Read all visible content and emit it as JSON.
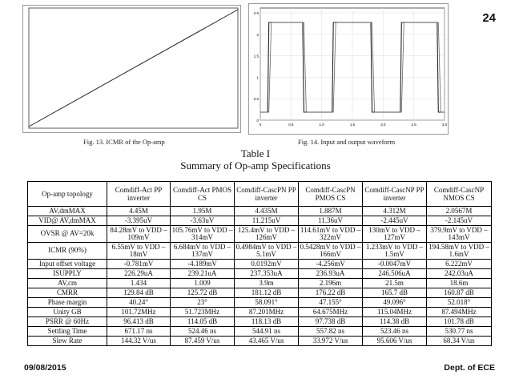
{
  "slide_number": "24",
  "figure13": {
    "caption": "Fig. 13. ICMR of the Op-amp"
  },
  "figure14": {
    "caption": "Fig. 14. Input and output waveform",
    "y_ticks": [
      "2.5",
      "2",
      "1.5",
      "1",
      "0.5",
      "0"
    ],
    "x_ticks": [
      "0",
      "0.5",
      "1.0",
      "1.5",
      "2.0",
      "2.5",
      "3.0"
    ]
  },
  "table": {
    "title_line1": "Table I",
    "title_line2": "Summary of Op-amp Specifications",
    "headers": [
      "Op-amp topology",
      "Comdiff-Act PP inverter",
      "Comdiff-Act PMOS CS",
      "Comdiff-CascPN PP inverter",
      "Comdiff-CascPN PMOS CS",
      "Comdiff-CascNP PP inverter",
      "Comdiff-CascNP NMOS CS"
    ],
    "rows": [
      {
        "label": "AV,dmMAX",
        "cells": [
          "4.45M",
          "1.95M",
          "4.435M",
          "1.887M",
          "4.312M",
          "2.0567M"
        ]
      },
      {
        "label": "VID@ AV,dmMAX",
        "cells": [
          "-3.395uV",
          "-3.63uV",
          "11.215uV",
          "11.36uV",
          "-2.445uV",
          "-2.145uV"
        ]
      },
      {
        "label": "OVSR @ AV=20k",
        "cells": [
          "84.28mV to VDD – 109mV",
          "105.76mV to VDD – 314mV",
          "125.4mV to VDD – 126mV",
          "114.61mV to VDD – 322mV",
          "130mV to VDD – 127mV",
          "379.9mV to VDD – 143mV"
        ]
      },
      {
        "label": "ICMR (90%)",
        "cells": [
          "6.55mV to VDD – 18mV",
          "6.684mV to VDD – 137mV",
          "0.4984mV to VDD – 5.1mV",
          "0.5428mV to VDD – 166mV",
          "1.233mV to VDD – 1.5mV",
          "194.58mV to VDD – 1.6mV"
        ]
      },
      {
        "label": "Input offset voltage",
        "cells": [
          "-0.781mV",
          "-4.189mV",
          "0.0192mV",
          "-4.256mV",
          "-0.0047mV",
          "6.222mV"
        ]
      },
      {
        "label": "ISUPPLY",
        "cells": [
          "226.29uA",
          "239.21uA",
          "237.353uA",
          "236.93uA",
          "246.506uA",
          "242.03uA"
        ]
      },
      {
        "label": "AV,cm",
        "cells": [
          "1.434",
          "1.009",
          "3.9m",
          "2.196m",
          "21.5m",
          "18.6m"
        ]
      },
      {
        "label": "CMRR",
        "cells": [
          "129.84 dB",
          "125.72 dB",
          "181.12 dB",
          "176.22 dB",
          "165.7 dB",
          "160.87 dB"
        ]
      },
      {
        "label": "Phase margin",
        "cells": [
          "40.24°",
          "23°",
          "58.091°",
          "47.155°",
          "49.096°",
          "52.018°"
        ]
      },
      {
        "label": "Unity GB",
        "cells": [
          "101.72MHz",
          "51.723MHz",
          "87.201MHz",
          "64.675MHz",
          "115.04MHz",
          "87.494MHz"
        ]
      },
      {
        "label": "PSRR @ 60Hz",
        "cells": [
          "96.413 dB",
          "114.05 dB",
          "118.13 dB",
          "97.738 dB",
          "114.38 dB",
          "101.78 dB"
        ]
      },
      {
        "label": "Settling Time",
        "cells": [
          "671.17 ns",
          "524.46 ns",
          "544.91 ns",
          "557.82 ns",
          "523.46 ns",
          "530.77 ns"
        ]
      },
      {
        "label": "Slew Rate",
        "cells": [
          "144.32 V/us",
          "87.459 V/us",
          "43.465 V/us",
          "33.972 V/us",
          "95.606 V/us",
          "68.34 V/us"
        ]
      }
    ]
  },
  "footer": {
    "date": "09/08/2015",
    "dept": "Dept. of  ECE"
  }
}
